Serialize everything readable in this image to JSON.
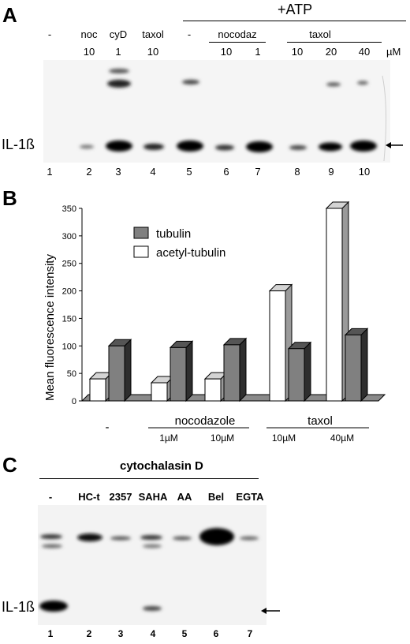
{
  "panel_a": {
    "letter": "A",
    "atp_label": "+ATP",
    "unit": "µM",
    "band_label": "IL-1ß",
    "top_labels": [
      {
        "text": "-",
        "x": 0
      },
      {
        "text": "noc",
        "x": 0
      },
      {
        "text": "cyD",
        "x": 0
      },
      {
        "text": "taxol",
        "x": 0
      },
      {
        "text": "-",
        "x": 0
      }
    ],
    "group_labels": [
      "nocodaz",
      "taxol"
    ],
    "concentrations": [
      "10",
      "1",
      "10",
      "10",
      "1",
      "10",
      "20",
      "40"
    ],
    "lanes": [
      "1",
      "2",
      "3",
      "4",
      "5",
      "6",
      "7",
      "8",
      "9",
      "10"
    ]
  },
  "panel_b": {
    "letter": "B",
    "chart_data": {
      "type": "bar",
      "ylabel": "Mean fluorescence intensity",
      "ylim": [
        0,
        350
      ],
      "yticks": [
        "0",
        "50",
        "100",
        "150",
        "200",
        "250",
        "300",
        "350"
      ],
      "categories": [
        "-",
        "1µM",
        "10µM",
        "10µM",
        "40µM"
      ],
      "group_labels": [
        "nocodazole",
        "taxol"
      ],
      "series": [
        {
          "name": "tubulin",
          "values": [
            100,
            97,
            102,
            95,
            120
          ],
          "color": "#808080"
        },
        {
          "name": "acetyl-tubulin",
          "values": [
            40,
            33,
            40,
            200,
            350
          ],
          "color": "#ffffff"
        }
      ]
    }
  },
  "panel_c": {
    "letter": "C",
    "title": "cytochalasin D",
    "band_label": "IL-1ß",
    "conditions": [
      "-",
      "HC-t",
      "2357",
      "SAHA",
      "AA",
      "Bel",
      "EGTA"
    ],
    "lanes": [
      "1",
      "2",
      "3",
      "4",
      "5",
      "6",
      "7"
    ]
  }
}
